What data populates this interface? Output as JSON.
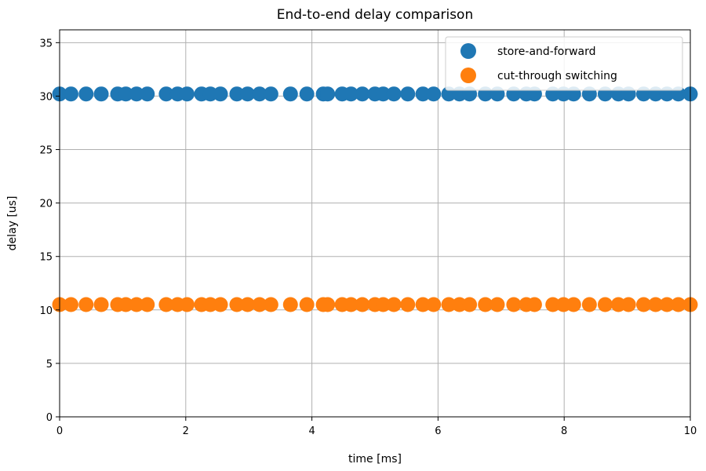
{
  "chart_data": {
    "type": "scatter",
    "title": "End-to-end delay comparison",
    "xlabel": "time [ms]",
    "ylabel": "delay [us]",
    "xlim": [
      0,
      10
    ],
    "ylim": [
      0,
      36.2
    ],
    "xticks": [
      0,
      2,
      4,
      6,
      8,
      10
    ],
    "yticks": [
      0,
      5,
      10,
      15,
      20,
      25,
      30,
      35
    ],
    "grid": true,
    "legend_position": "top-right",
    "x": [
      0.0,
      0.18,
      0.42,
      0.66,
      0.92,
      1.05,
      1.22,
      1.39,
      1.69,
      1.87,
      2.02,
      2.25,
      2.39,
      2.55,
      2.81,
      2.98,
      3.17,
      3.35,
      3.66,
      3.92,
      4.18,
      4.25,
      4.48,
      4.62,
      4.8,
      5.0,
      5.13,
      5.3,
      5.52,
      5.76,
      5.93,
      6.17,
      6.34,
      6.5,
      6.75,
      6.94,
      7.2,
      7.4,
      7.53,
      7.82,
      7.99,
      8.15,
      8.4,
      8.65,
      8.86,
      9.02,
      9.26,
      9.45,
      9.63,
      9.81,
      10.0
    ],
    "series": [
      {
        "name": "store-and-forward",
        "color": "#1f77b4",
        "values": [
          30.2,
          30.2,
          30.2,
          30.2,
          30.2,
          30.2,
          30.2,
          30.2,
          30.2,
          30.2,
          30.2,
          30.2,
          30.2,
          30.2,
          30.2,
          30.2,
          30.2,
          30.2,
          30.2,
          30.2,
          30.2,
          30.2,
          30.2,
          30.2,
          30.2,
          30.2,
          30.2,
          30.2,
          30.2,
          30.2,
          30.2,
          30.2,
          30.2,
          30.2,
          30.2,
          30.2,
          30.2,
          30.2,
          30.2,
          30.2,
          30.2,
          30.2,
          30.2,
          30.2,
          30.2,
          30.2,
          30.2,
          30.2,
          30.2,
          30.2,
          30.2
        ]
      },
      {
        "name": "cut-through switching",
        "color": "#ff7f0e",
        "values": [
          10.5,
          10.5,
          10.5,
          10.5,
          10.5,
          10.5,
          10.5,
          10.5,
          10.5,
          10.5,
          10.5,
          10.5,
          10.5,
          10.5,
          10.5,
          10.5,
          10.5,
          10.5,
          10.5,
          10.5,
          10.5,
          10.5,
          10.5,
          10.5,
          10.5,
          10.5,
          10.5,
          10.5,
          10.5,
          10.5,
          10.5,
          10.5,
          10.5,
          10.5,
          10.5,
          10.5,
          10.5,
          10.5,
          10.5,
          10.5,
          10.5,
          10.5,
          10.5,
          10.5,
          10.5,
          10.5,
          10.5,
          10.5,
          10.5,
          10.5,
          10.5
        ]
      }
    ]
  }
}
